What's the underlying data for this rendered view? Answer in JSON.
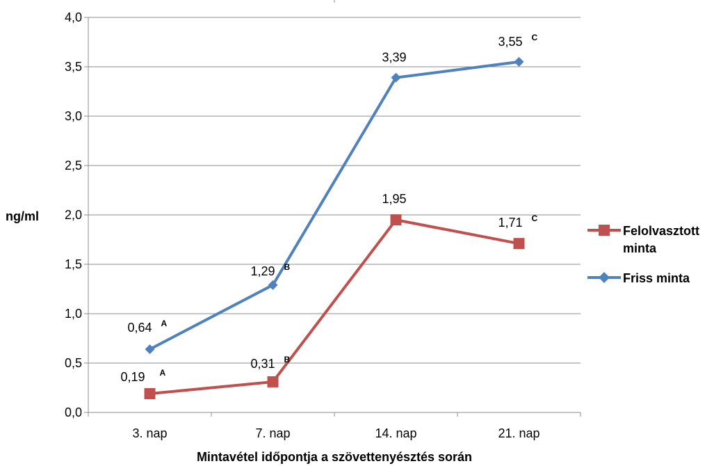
{
  "chart_data": {
    "type": "line",
    "categories": [
      "3. nap",
      "7. nap",
      "14. nap",
      "21. nap"
    ],
    "ylim": [
      0,
      4.0
    ],
    "yticks": [
      "0,0",
      "0,5",
      "1,0",
      "1,5",
      "2,0",
      "2,5",
      "3,0",
      "3,5",
      "4,0"
    ],
    "ylabel": "ng/ml",
    "xlabel": "Mintavétel időpontja a szövettenyésztés során",
    "grid": true,
    "legend_position": "right",
    "series": [
      {
        "name": "Felolvasztott minta",
        "color": "#c0504d",
        "marker": "square",
        "values": [
          0.19,
          0.31,
          1.95,
          1.71
        ],
        "labels": [
          "0,19",
          "0,31",
          "1,95",
          "1,71"
        ],
        "sups": [
          "A",
          "B",
          "",
          "C"
        ]
      },
      {
        "name": "Friss minta",
        "color": "#4f81bd",
        "marker": "diamond",
        "values": [
          0.64,
          1.29,
          3.39,
          3.55
        ],
        "labels": [
          "0,64",
          "1,29",
          "3,39",
          "3,55"
        ],
        "sups": [
          "A",
          "B",
          "",
          "C"
        ]
      }
    ]
  }
}
